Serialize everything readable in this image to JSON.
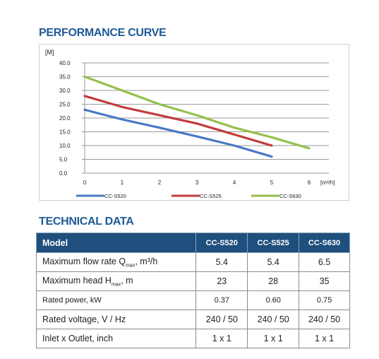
{
  "page": {
    "performance_title": "PERFORMANCE CURVE",
    "technical_title": "TECHNICAL DATA"
  },
  "chart_data": {
    "type": "line",
    "ylabel": "[M]",
    "xlabel": "[m³/h]",
    "x_ticks": [
      "0",
      "1",
      "2",
      "3",
      "4",
      "5",
      "6"
    ],
    "y_ticks": [
      "0.0",
      "5.0",
      "10.0",
      "15.0",
      "20.0",
      "25.0",
      "30.0",
      "35.0",
      "40.0"
    ],
    "xlim": [
      0,
      6.5
    ],
    "ylim": [
      0,
      40
    ],
    "grid": true,
    "legend_position": "bottom",
    "series": [
      {
        "name": "CC-S520",
        "color": "#4a78c4",
        "points": [
          [
            0,
            23
          ],
          [
            1,
            19.5
          ],
          [
            2,
            16.5
          ],
          [
            3,
            13.3
          ],
          [
            4,
            10
          ],
          [
            5,
            6
          ]
        ]
      },
      {
        "name": "CC-S525",
        "color": "#c23b3b",
        "points": [
          [
            0,
            28
          ],
          [
            1,
            24
          ],
          [
            2,
            21
          ],
          [
            3,
            18
          ],
          [
            4,
            14
          ],
          [
            5,
            10
          ]
        ]
      },
      {
        "name": "CC-S630",
        "color": "#94bf4c",
        "points": [
          [
            0,
            35
          ],
          [
            1,
            30
          ],
          [
            2,
            25
          ],
          [
            3,
            21
          ],
          [
            4,
            16.5
          ],
          [
            5,
            13
          ],
          [
            6,
            9
          ]
        ]
      }
    ]
  },
  "table": {
    "headers": [
      "Model",
      "CC-S520",
      "CC-S525",
      "CC-S630"
    ],
    "rows": [
      {
        "label": "Maximum flow rate Q",
        "sub": "max",
        "suffix": ", m³/h",
        "values": [
          "5.4",
          "5.4",
          "6.5"
        ],
        "small": false
      },
      {
        "label": "Maximum head H",
        "sub": "max",
        "suffix": ", m",
        "values": [
          "23",
          "28",
          "35"
        ],
        "small": false
      },
      {
        "label": "Rated power, kW",
        "sub": "",
        "suffix": "",
        "values": [
          "0.37",
          "0.60",
          "0.75"
        ],
        "small": true
      },
      {
        "label": "Rated voltage, V / Hz",
        "sub": "",
        "suffix": "",
        "values": [
          "240 / 50",
          "240 / 50",
          "240 / 50"
        ],
        "small": false
      },
      {
        "label": "Inlet x Outlet, inch",
        "sub": "",
        "suffix": "",
        "values": [
          "1 x 1",
          "1 x 1",
          "1 x 1"
        ],
        "small": false
      }
    ]
  }
}
